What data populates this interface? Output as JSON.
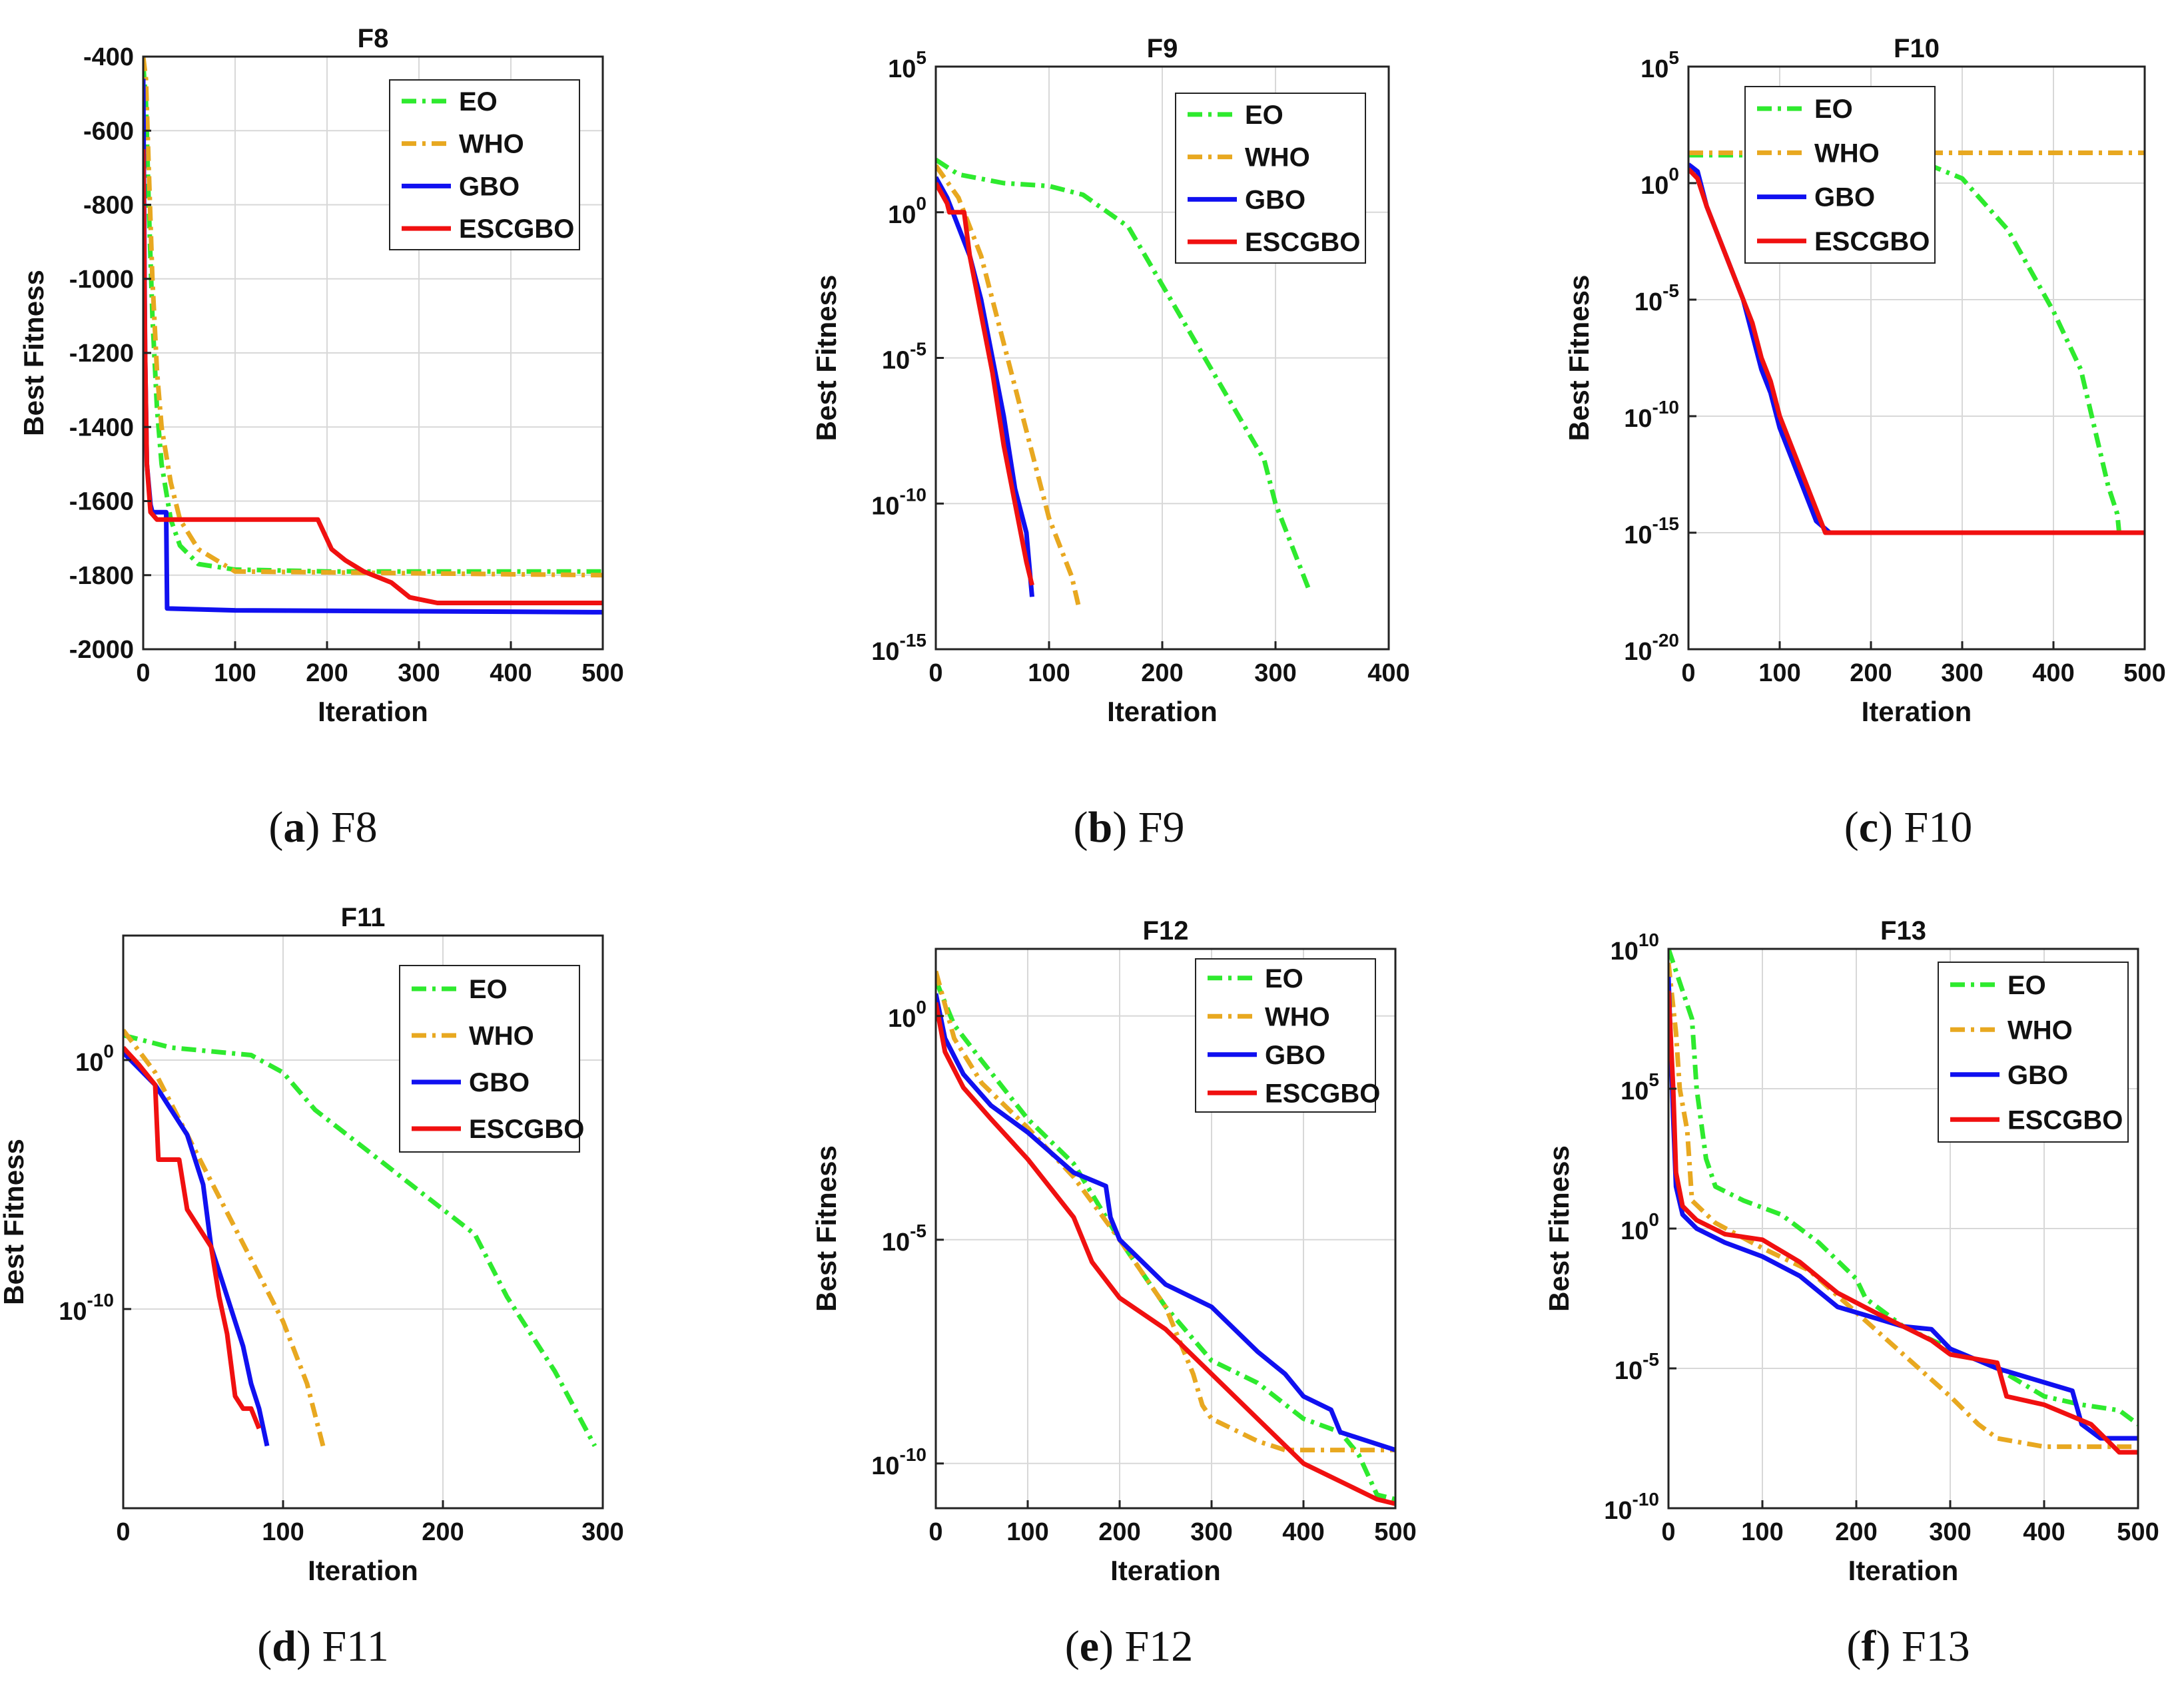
{
  "figure": {
    "captions": [
      {
        "letter": "a",
        "name": "F8"
      },
      {
        "letter": "b",
        "name": "F9"
      },
      {
        "letter": "c",
        "name": "F10"
      },
      {
        "letter": "d",
        "name": "F11"
      },
      {
        "letter": "e",
        "name": "F12"
      },
      {
        "letter": "f",
        "name": "F13"
      }
    ]
  },
  "colors": {
    "EO": "#2eea2e",
    "WHO": "#e8a820",
    "GBO": "#1010f0",
    "ESCGBO": "#f01010"
  },
  "chart_data": [
    {
      "type": "line",
      "title": "F8",
      "xlabel": "Iteration",
      "ylabel": "Best Fitness",
      "yscale": "linear",
      "xlim": [
        0,
        500
      ],
      "ylim": [
        -2000,
        -400
      ],
      "xticks": [
        0,
        100,
        200,
        300,
        400,
        500
      ],
      "yticks": [
        -400,
        -600,
        -800,
        -1000,
        -1200,
        -1400,
        -1600,
        -1800,
        -2000
      ],
      "ytick_labels": [
        "-400",
        "-600",
        "-800",
        "-1000",
        "-1200",
        "-1400",
        "-1600",
        "-1800",
        "-2000"
      ],
      "legend_position": "top-right",
      "series": [
        {
          "name": "EO",
          "style": "dashdot",
          "x": [
            0,
            3,
            6,
            10,
            15,
            20,
            30,
            40,
            60,
            100,
            200,
            500
          ],
          "y": [
            -420,
            -520,
            -800,
            -1100,
            -1350,
            -1500,
            -1650,
            -1720,
            -1770,
            -1785,
            -1790,
            -1790
          ]
        },
        {
          "name": "WHO",
          "style": "dashdot",
          "x": [
            0,
            3,
            6,
            10,
            15,
            20,
            30,
            40,
            60,
            100,
            500
          ],
          "y": [
            -400,
            -460,
            -700,
            -1000,
            -1250,
            -1400,
            -1550,
            -1650,
            -1730,
            -1790,
            -1800
          ]
        },
        {
          "name": "GBO",
          "style": "solid",
          "x": [
            0,
            2,
            4,
            8,
            10,
            25,
            26,
            100,
            500
          ],
          "y": [
            -460,
            -1200,
            -1500,
            -1610,
            -1630,
            -1630,
            -1890,
            -1895,
            -1900
          ]
        },
        {
          "name": "ESCGBO",
          "style": "solid",
          "x": [
            0,
            2,
            4,
            8,
            15,
            190,
            205,
            220,
            240,
            270,
            290,
            320,
            500
          ],
          "y": [
            -650,
            -1200,
            -1500,
            -1630,
            -1650,
            -1650,
            -1730,
            -1760,
            -1790,
            -1820,
            -1860,
            -1875,
            -1875
          ]
        }
      ]
    },
    {
      "type": "line",
      "title": "F9",
      "xlabel": "Iteration",
      "ylabel": "Best Fitness",
      "yscale": "log",
      "xlim": [
        0,
        400
      ],
      "ylim": [
        -15,
        5
      ],
      "xticks": [
        0,
        100,
        200,
        300,
        400
      ],
      "yticks": [
        5,
        0,
        -5,
        -10,
        -15
      ],
      "ytick_labels": [
        [
          "10",
          "5"
        ],
        [
          "10",
          "0"
        ],
        [
          "10",
          "-5"
        ],
        [
          "10",
          "-10"
        ],
        [
          "10",
          "-15"
        ]
      ],
      "legend_position": "top-right",
      "series": [
        {
          "name": "EO",
          "style": "dashdot",
          "x": [
            0,
            20,
            60,
            100,
            130,
            170,
            200,
            230,
            260,
            290,
            300,
            320,
            330
          ],
          "y": [
            1.8,
            1.3,
            1.0,
            0.9,
            0.6,
            -0.5,
            -2.5,
            -4.5,
            -6.5,
            -8.5,
            -10,
            -12,
            -13
          ]
        },
        {
          "name": "WHO",
          "style": "dashdot",
          "x": [
            0,
            20,
            40,
            60,
            80,
            100,
            120,
            126
          ],
          "y": [
            1.6,
            0.5,
            -1.5,
            -4.5,
            -7.5,
            -10.5,
            -12.5,
            -13.5
          ]
        },
        {
          "name": "GBO",
          "style": "solid",
          "x": [
            0,
            10,
            20,
            30,
            40,
            50,
            60,
            70,
            80,
            85
          ],
          "y": [
            1.2,
            0.5,
            -0.5,
            -1.5,
            -3.0,
            -5.0,
            -7.0,
            -9.5,
            -11,
            -13.2
          ]
        },
        {
          "name": "ESCGBO",
          "style": "solid",
          "x": [
            0,
            10,
            12,
            25,
            30,
            40,
            50,
            60,
            70,
            80,
            85
          ],
          "y": [
            1.0,
            0.3,
            0,
            0,
            -1.5,
            -3.5,
            -5.5,
            -8.0,
            -10,
            -12,
            -12.8
          ]
        }
      ]
    },
    {
      "type": "line",
      "title": "F10",
      "xlabel": "Iteration",
      "ylabel": "Best Fitness",
      "yscale": "log",
      "xlim": [
        0,
        500
      ],
      "ylim": [
        -20,
        5
      ],
      "xticks": [
        0,
        100,
        200,
        300,
        400,
        500
      ],
      "yticks": [
        5,
        0,
        -5,
        -10,
        -15,
        -20
      ],
      "ytick_labels": [
        [
          "10",
          "5"
        ],
        [
          "10",
          "0"
        ],
        [
          "10",
          "-5"
        ],
        [
          "10",
          "-10"
        ],
        [
          "10",
          "-15"
        ],
        [
          "10",
          "-20"
        ]
      ],
      "legend_position": "top-left",
      "series": [
        {
          "name": "EO",
          "style": "dashdot",
          "x": [
            0,
            100,
            200,
            250,
            300,
            350,
            400,
            430,
            460,
            470,
            472,
            500
          ],
          "y": [
            1.2,
            1.2,
            1.2,
            1.0,
            0.2,
            -2.0,
            -5.5,
            -8.0,
            -13.0,
            -14.2,
            -15,
            -15
          ]
        },
        {
          "name": "WHO",
          "style": "dashdot",
          "x": [
            0,
            500
          ],
          "y": [
            1.3,
            1.3
          ]
        },
        {
          "name": "GBO",
          "style": "solid",
          "x": [
            0,
            10,
            20,
            30,
            40,
            50,
            60,
            70,
            80,
            90,
            100,
            110,
            120,
            130,
            140,
            155,
            160,
            500
          ],
          "y": [
            0.8,
            0.5,
            -1.0,
            -2.0,
            -3.0,
            -4.0,
            -5.0,
            -6.5,
            -8.0,
            -9.0,
            -10.5,
            -11.5,
            -12.5,
            -13.5,
            -14.5,
            -15,
            -15,
            -15
          ]
        },
        {
          "name": "ESCGBO",
          "style": "solid",
          "x": [
            0,
            10,
            20,
            30,
            40,
            50,
            60,
            70,
            80,
            90,
            100,
            110,
            120,
            130,
            140,
            150,
            500
          ],
          "y": [
            0.6,
            0.2,
            -1.0,
            -2.0,
            -3.0,
            -4.0,
            -5.0,
            -6.0,
            -7.5,
            -8.5,
            -10,
            -11,
            -12,
            -13,
            -14,
            -15,
            -15
          ]
        }
      ]
    },
    {
      "type": "line",
      "title": "F11",
      "xlabel": "Iteration",
      "ylabel": "Best Fitness",
      "yscale": "log",
      "xlim": [
        0,
        300
      ],
      "ylim": [
        -18,
        5
      ],
      "xticks": [
        0,
        100,
        200,
        300
      ],
      "yticks": [
        0,
        -10
      ],
      "ytick_labels": [
        [
          "10",
          "0"
        ],
        [
          "10",
          "-10"
        ]
      ],
      "legend_position": "top-right",
      "series": [
        {
          "name": "EO",
          "style": "dashdot",
          "x": [
            0,
            30,
            80,
            100,
            120,
            150,
            180,
            200,
            220,
            240,
            270,
            295
          ],
          "y": [
            1.0,
            0.5,
            0.2,
            -0.5,
            -2.0,
            -3.5,
            -5.0,
            -6.0,
            -7.0,
            -9.5,
            -12.5,
            -15.5
          ]
        },
        {
          "name": "WHO",
          "style": "dashdot",
          "x": [
            0,
            20,
            40,
            60,
            80,
            100,
            115,
            125
          ],
          "y": [
            1.2,
            -0.5,
            -3.0,
            -5.5,
            -8.0,
            -10.5,
            -13.0,
            -15.5
          ]
        },
        {
          "name": "GBO",
          "style": "solid",
          "x": [
            0,
            20,
            40,
            50,
            55,
            60,
            70,
            75,
            80,
            85,
            90
          ],
          "y": [
            0.3,
            -1.0,
            -3.0,
            -5.0,
            -7.5,
            -8.5,
            -10.5,
            -11.5,
            -13,
            -14,
            -15.5
          ]
        },
        {
          "name": "ESCGBO",
          "style": "solid",
          "x": [
            0,
            10,
            20,
            22,
            35,
            40,
            55,
            60,
            65,
            70,
            75,
            80,
            85
          ],
          "y": [
            0.5,
            -0.2,
            -1.0,
            -4.0,
            -4.0,
            -6.0,
            -7.5,
            -9.5,
            -11,
            -13.5,
            -14,
            -14,
            -14.8
          ]
        }
      ]
    },
    {
      "type": "line",
      "title": "F12",
      "xlabel": "Iteration",
      "ylabel": "Best Fitness",
      "yscale": "log",
      "xlim": [
        0,
        500
      ],
      "ylim": [
        -11,
        1.5
      ],
      "xticks": [
        0,
        100,
        200,
        300,
        400,
        500
      ],
      "yticks": [
        0,
        -5,
        -10
      ],
      "ytick_labels": [
        [
          "10",
          "0"
        ],
        [
          "10",
          "-5"
        ],
        [
          "10",
          "-10"
        ]
      ],
      "legend_position": "top-right",
      "series": [
        {
          "name": "EO",
          "style": "dashdot",
          "x": [
            0,
            20,
            50,
            100,
            150,
            200,
            250,
            300,
            350,
            400,
            440,
            460,
            480,
            500
          ],
          "y": [
            0.8,
            -0.2,
            -1.0,
            -2.3,
            -3.3,
            -5.0,
            -6.5,
            -7.7,
            -8.2,
            -9.0,
            -9.3,
            -9.8,
            -10.7,
            -10.8
          ]
        },
        {
          "name": "WHO",
          "style": "dashdot",
          "x": [
            0,
            20,
            50,
            100,
            150,
            200,
            250,
            280,
            290,
            300,
            320,
            350,
            380,
            500
          ],
          "y": [
            1.0,
            -0.5,
            -1.5,
            -2.5,
            -3.6,
            -5.0,
            -6.5,
            -8.0,
            -8.7,
            -9.0,
            -9.2,
            -9.5,
            -9.7,
            -9.7
          ]
        },
        {
          "name": "GBO",
          "style": "solid",
          "x": [
            0,
            10,
            30,
            60,
            100,
            150,
            185,
            190,
            200,
            250,
            300,
            350,
            380,
            400,
            430,
            440,
            500
          ],
          "y": [
            0.5,
            -0.5,
            -1.3,
            -2.0,
            -2.6,
            -3.5,
            -3.8,
            -4.5,
            -5.0,
            -6.0,
            -6.5,
            -7.5,
            -8.0,
            -8.5,
            -8.8,
            -9.3,
            -9.7
          ]
        },
        {
          "name": "ESCGBO",
          "style": "solid",
          "x": [
            0,
            10,
            30,
            60,
            100,
            150,
            170,
            200,
            250,
            300,
            350,
            400,
            450,
            480,
            500
          ],
          "y": [
            0.3,
            -0.8,
            -1.6,
            -2.3,
            -3.2,
            -4.5,
            -5.5,
            -6.3,
            -7.0,
            -8.0,
            -9.0,
            -10.0,
            -10.5,
            -10.8,
            -10.9
          ]
        }
      ]
    },
    {
      "type": "line",
      "title": "F13",
      "xlabel": "Iteration",
      "ylabel": "Best Fitness",
      "yscale": "log",
      "xlim": [
        0,
        500
      ],
      "ylim": [
        -10,
        10
      ],
      "xticks": [
        0,
        100,
        200,
        300,
        400,
        500
      ],
      "yticks": [
        10,
        5,
        0,
        -5,
        -10
      ],
      "ytick_labels": [
        [
          "10",
          "10"
        ],
        [
          "10",
          "5"
        ],
        [
          "10",
          "0"
        ],
        [
          "10",
          "-5"
        ],
        [
          "10",
          "-10"
        ]
      ],
      "legend_position": "top-right",
      "series": [
        {
          "name": "EO",
          "style": "dashdot",
          "x": [
            0,
            5,
            15,
            25,
            30,
            40,
            50,
            80,
            120,
            160,
            200,
            210,
            250,
            300,
            350,
            400,
            440,
            480,
            500
          ],
          "y": [
            10,
            9.5,
            8.5,
            7.5,
            5.0,
            2.5,
            1.5,
            1.0,
            0.5,
            -0.5,
            -1.8,
            -2.5,
            -3.5,
            -4.3,
            -5.0,
            -6.0,
            -6.3,
            -6.5,
            -7.0
          ]
        },
        {
          "name": "WHO",
          "style": "dashdot",
          "x": [
            0,
            8,
            12,
            20,
            25,
            50,
            100,
            150,
            200,
            250,
            300,
            330,
            350,
            400,
            500
          ],
          "y": [
            9.5,
            7.0,
            5.0,
            3.5,
            1.0,
            0.2,
            -0.7,
            -1.5,
            -3.0,
            -4.5,
            -6.0,
            -7.0,
            -7.5,
            -7.8,
            -7.8
          ]
        },
        {
          "name": "GBO",
          "style": "solid",
          "x": [
            0,
            5,
            8,
            15,
            30,
            60,
            100,
            140,
            180,
            220,
            250,
            280,
            300,
            350,
            400,
            430,
            440,
            460,
            500
          ],
          "y": [
            9.0,
            4.0,
            1.5,
            0.5,
            0,
            -0.5,
            -1.0,
            -1.7,
            -2.8,
            -3.2,
            -3.5,
            -3.6,
            -4.3,
            -5.0,
            -5.5,
            -5.8,
            -7.0,
            -7.5,
            -7.5
          ]
        },
        {
          "name": "ESCGBO",
          "style": "solid",
          "x": [
            0,
            5,
            8,
            15,
            30,
            60,
            100,
            140,
            180,
            220,
            250,
            280,
            300,
            350,
            360,
            400,
            450,
            480,
            500
          ],
          "y": [
            8.5,
            5.0,
            2.0,
            0.8,
            0.3,
            -0.2,
            -0.4,
            -1.2,
            -2.3,
            -3.0,
            -3.5,
            -4.0,
            -4.5,
            -4.8,
            -6.0,
            -6.3,
            -7.0,
            -8.0,
            -8.0
          ]
        }
      ]
    }
  ]
}
